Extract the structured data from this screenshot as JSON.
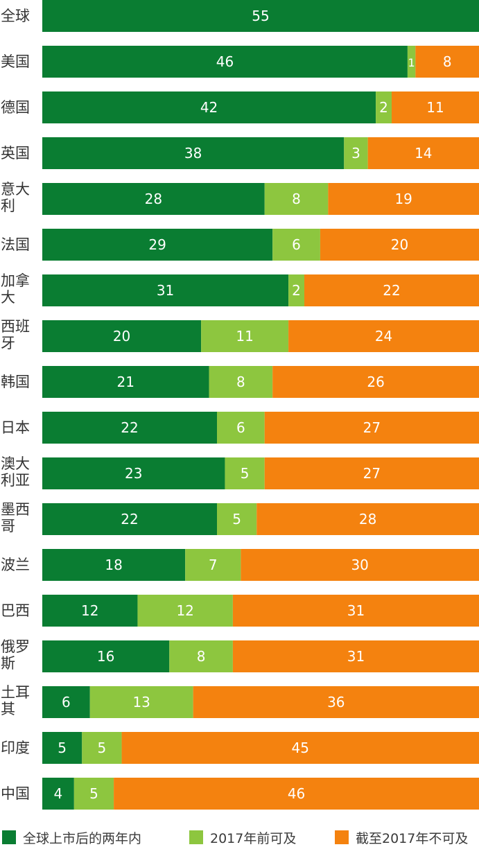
{
  "chart_data": {
    "type": "bar",
    "orientation": "horizontal",
    "stacked": true,
    "categories": [
      "全球",
      "美国",
      "德国",
      "英国",
      "意大利",
      "法国",
      "加拿大",
      "西班牙",
      "韩国",
      "日本",
      "澳大利亚",
      "墨西哥",
      "波兰",
      "巴西",
      "俄罗斯",
      "土耳其",
      "印度",
      "中国"
    ],
    "category_display": [
      "全球",
      "美国",
      "德国",
      "英国",
      "意大\n利",
      "法国",
      "加拿\n大",
      "西班\n牙",
      "韩国",
      "日本",
      "澳大\n利亚",
      "墨西\n哥",
      "波兰",
      "巴西",
      "俄罗\n斯",
      "土耳\n其",
      "印度",
      "中国"
    ],
    "series": [
      {
        "name": "全球上市后的两年内",
        "color": "#0a7d32",
        "values": [
          55,
          46,
          42,
          38,
          28,
          29,
          31,
          20,
          21,
          22,
          23,
          22,
          18,
          12,
          16,
          6,
          5,
          4
        ]
      },
      {
        "name": "2017年前可及",
        "color": "#8dc63f",
        "values": [
          0,
          1,
          2,
          3,
          8,
          6,
          2,
          11,
          8,
          6,
          5,
          5,
          7,
          12,
          8,
          13,
          5,
          5
        ]
      },
      {
        "name": "截至2017年不可及",
        "color": "#f4820f",
        "values": [
          0,
          8,
          11,
          14,
          19,
          20,
          22,
          24,
          26,
          27,
          27,
          28,
          30,
          31,
          31,
          36,
          45,
          46
        ]
      }
    ],
    "xlim": [
      0,
      55
    ],
    "legend_position": "bottom",
    "grid": false
  }
}
